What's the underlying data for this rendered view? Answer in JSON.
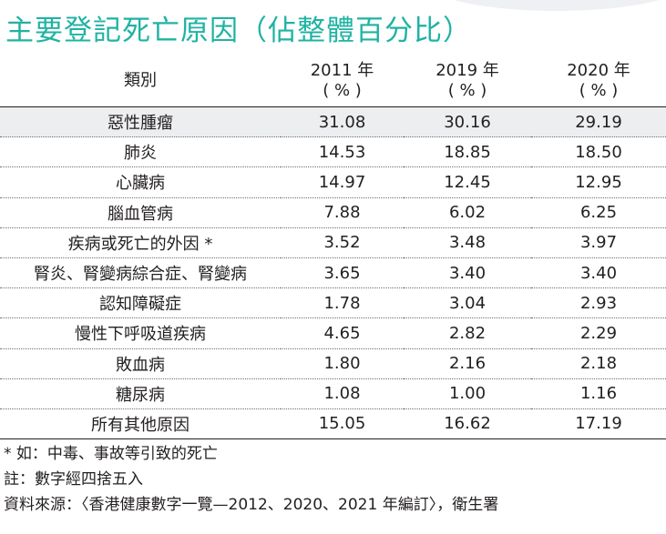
{
  "title": "主要登記死亡原因（佔整體百分比）",
  "table": {
    "header": {
      "category": "類別",
      "years": [
        {
          "year": "2011 年",
          "unit": "( % )"
        },
        {
          "year": "2019 年",
          "unit": "( % )"
        },
        {
          "year": "2020 年",
          "unit": "( % )"
        }
      ]
    },
    "rows": [
      {
        "label": "惡性腫瘤",
        "values": [
          "31.08",
          "30.16",
          "29.19"
        ]
      },
      {
        "label": "肺炎",
        "values": [
          "14.53",
          "18.85",
          "18.50"
        ]
      },
      {
        "label": "心臟病",
        "values": [
          "14.97",
          "12.45",
          "12.95"
        ]
      },
      {
        "label": "腦血管病",
        "values": [
          "7.88",
          "6.02",
          "6.25"
        ]
      },
      {
        "label": "疾病或死亡的外因 *",
        "values": [
          "3.52",
          "3.48",
          "3.97"
        ]
      },
      {
        "label": "腎炎、腎變病綜合症、腎變病",
        "values": [
          "3.65",
          "3.40",
          "3.40"
        ]
      },
      {
        "label": "認知障礙症",
        "values": [
          "1.78",
          "3.04",
          "2.93"
        ]
      },
      {
        "label": "慢性下呼吸道疾病",
        "values": [
          "4.65",
          "2.82",
          "2.29"
        ]
      },
      {
        "label": "敗血病",
        "values": [
          "1.80",
          "2.16",
          "2.18"
        ]
      },
      {
        "label": "糖尿病",
        "values": [
          "1.08",
          "1.00",
          "1.16"
        ]
      },
      {
        "label": "所有其他原因",
        "values": [
          "15.05",
          "16.62",
          "17.19"
        ]
      }
    ]
  },
  "notes": [
    "* 如：中毒、事故等引致的死亡",
    "註：數字經四捨五入",
    "資料來源：〈香港健康數字一覽—2012、2020、2021 年編訂〉，衛生署"
  ],
  "colors": {
    "title": "#1fb3a3",
    "highlight_row": "#eceef0",
    "text": "#231f20"
  },
  "chart_data": {
    "type": "table",
    "title": "主要登記死亡原因（佔整體百分比）",
    "columns": [
      "類別",
      "2011 年 ( % )",
      "2019 年 ( % )",
      "2020 年 ( % )"
    ],
    "categories": [
      "惡性腫瘤",
      "肺炎",
      "心臟病",
      "腦血管病",
      "疾病或死亡的外因 *",
      "腎炎、腎變病綜合症、腎變病",
      "認知障礙症",
      "慢性下呼吸道疾病",
      "敗血病",
      "糖尿病",
      "所有其他原因"
    ],
    "series": [
      {
        "name": "2011 年",
        "values": [
          31.08,
          14.53,
          14.97,
          7.88,
          3.52,
          3.65,
          1.78,
          4.65,
          1.8,
          1.08,
          15.05
        ]
      },
      {
        "name": "2019 年",
        "values": [
          30.16,
          18.85,
          12.45,
          6.02,
          3.48,
          3.4,
          3.04,
          2.82,
          2.16,
          1.0,
          16.62
        ]
      },
      {
        "name": "2020 年",
        "values": [
          29.19,
          18.5,
          12.95,
          6.25,
          3.97,
          3.4,
          2.93,
          2.29,
          2.18,
          1.16,
          17.19
        ]
      }
    ]
  }
}
